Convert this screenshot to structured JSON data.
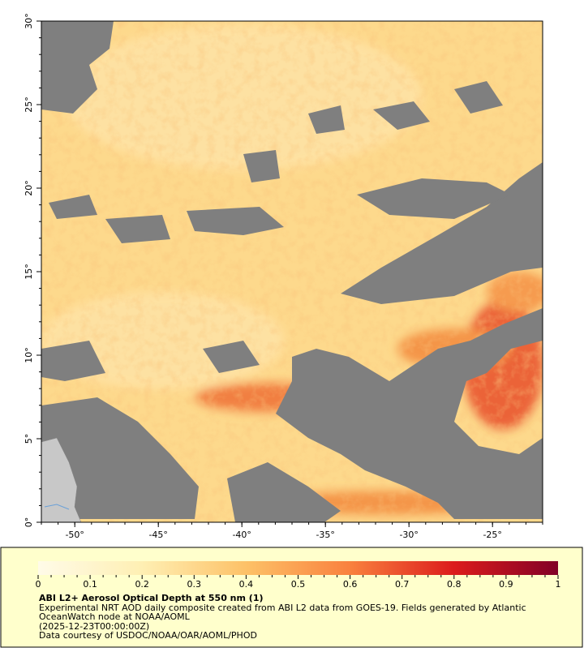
{
  "map": {
    "xlim": [
      -52,
      -22
    ],
    "ylim": [
      0,
      30
    ],
    "xticks": [
      {
        "value": -50,
        "label": "-50°"
      },
      {
        "value": -45,
        "label": "-45°"
      },
      {
        "value": -40,
        "label": "-40°"
      },
      {
        "value": -35,
        "label": "-35°"
      },
      {
        "value": -30,
        "label": "-30°"
      },
      {
        "value": -25,
        "label": "-25°"
      }
    ],
    "yticks": [
      {
        "value": 0,
        "label": "0°"
      },
      {
        "value": 5,
        "label": "5°"
      },
      {
        "value": 10,
        "label": "10°"
      },
      {
        "value": 15,
        "label": "15°"
      },
      {
        "value": 20,
        "label": "20°"
      },
      {
        "value": 25,
        "label": "25°"
      },
      {
        "value": 30,
        "label": "30°"
      }
    ]
  },
  "colorbar": {
    "range": [
      0,
      1
    ],
    "ticks": [
      0,
      0.1,
      0.2,
      0.3,
      0.4,
      0.5,
      0.6,
      0.7,
      0.8,
      0.9,
      1
    ]
  },
  "caption": {
    "title": "ABI L2+ Aerosol Optical Depth at 550 nm (1)",
    "lines": [
      "Experimental NRT AOD daily composite created from ABI L2 data from GOES-19. Fields generated by Atlantic",
      "OceanWatch node at NOAA/AOML",
      "(2025-12-23T00:00:00Z)",
      "Data courtesy of USDOC/NOAA/OAR/AOML/PHOD"
    ]
  }
}
